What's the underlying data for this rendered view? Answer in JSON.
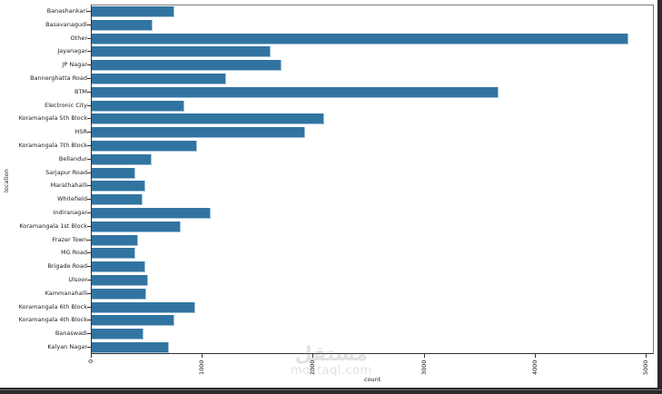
{
  "chart_data": {
    "type": "bar",
    "orientation": "horizontal",
    "title": "",
    "xlabel": "count",
    "ylabel": "location",
    "xlim": [
      0,
      5070
    ],
    "xticks": [
      0,
      1000,
      2000,
      3000,
      4000,
      5000
    ],
    "xtick_labels": [
      "0",
      "1000",
      "2000",
      "3000",
      "4000",
      "5000"
    ],
    "grid": false,
    "legend": null,
    "bar_color": "#3274a1",
    "categories": [
      "Banashankari",
      "Basavanagudi",
      "Other",
      "Jayanagar",
      "JP Nagar",
      "Bannerghatta Road",
      "BTM",
      "Electronic City",
      "Koramangala 5th Block",
      "HSR",
      "Koramangala 7th Block",
      "Bellandur",
      "Sarjapur Road",
      "Marathahalli",
      "Whitefield",
      "Indiranagar",
      "Koramangala 1st Block",
      "Frazer Town",
      "MG Road",
      "Brigade Road",
      "Ulsoor",
      "Kammanahalli",
      "Koramangala 6th Block",
      "Koramangala 4th Block",
      "Banaswadi",
      "Kalyan Nagar"
    ],
    "values": [
      745,
      548,
      4836,
      1612,
      1710,
      1211,
      3666,
      835,
      2095,
      1923,
      949,
      540,
      393,
      483,
      458,
      1072,
      802,
      417,
      393,
      483,
      507,
      491,
      933,
      745,
      466,
      696
    ]
  },
  "watermark": {
    "arabic": "مستقل",
    "latin": "mostaql.com"
  }
}
